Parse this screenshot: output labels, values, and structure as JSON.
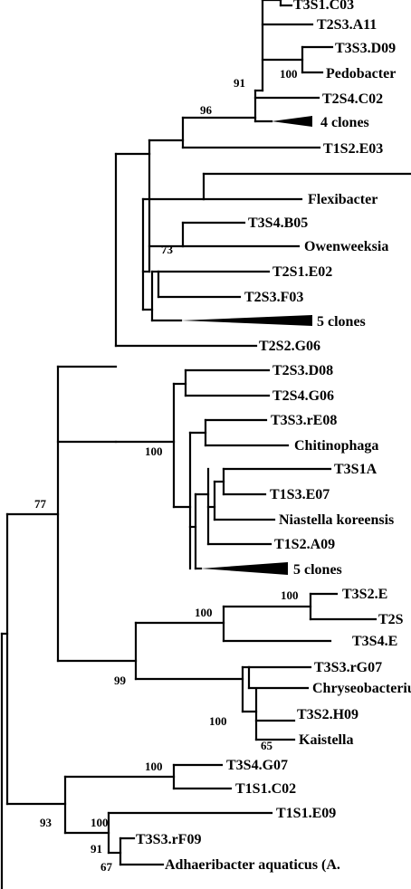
{
  "tree": {
    "leaves": [
      "T3S1.C03",
      "T2S3.A11",
      "T3S3.D09",
      "Pedobacter",
      "T2S4.C02",
      "4 clones",
      "T1S2.E03",
      "Flexibacter",
      "T3S4.B05",
      "Owenweeksia",
      "T2S1.E02",
      "T2S3.F03",
      "5 clones",
      "T2S2.G06",
      "T2S3.D08",
      "T2S4.G06",
      "T3S3.rE08",
      "Chitinophaga",
      "T3S1A",
      "T1S3.E07",
      "Niastella koreensis",
      "T1S2.A09",
      "5 clones",
      "T3S2.E",
      "T2S",
      "T3S4.E",
      "T3S3.rG07",
      "Chryseobacterium",
      "T3S2.H09",
      "Kaistella",
      "T3S4.G07",
      "T1S1.C02",
      "T1S1.E09",
      "T3S3.rF09",
      "Adhaeribacter aquaticus (A."
    ],
    "bootstrap": [
      "91",
      "100",
      "96",
      "73",
      "100",
      "77",
      "100",
      "100",
      "100",
      "99",
      "100",
      "65",
      "100",
      "93",
      "91",
      "67"
    ]
  }
}
